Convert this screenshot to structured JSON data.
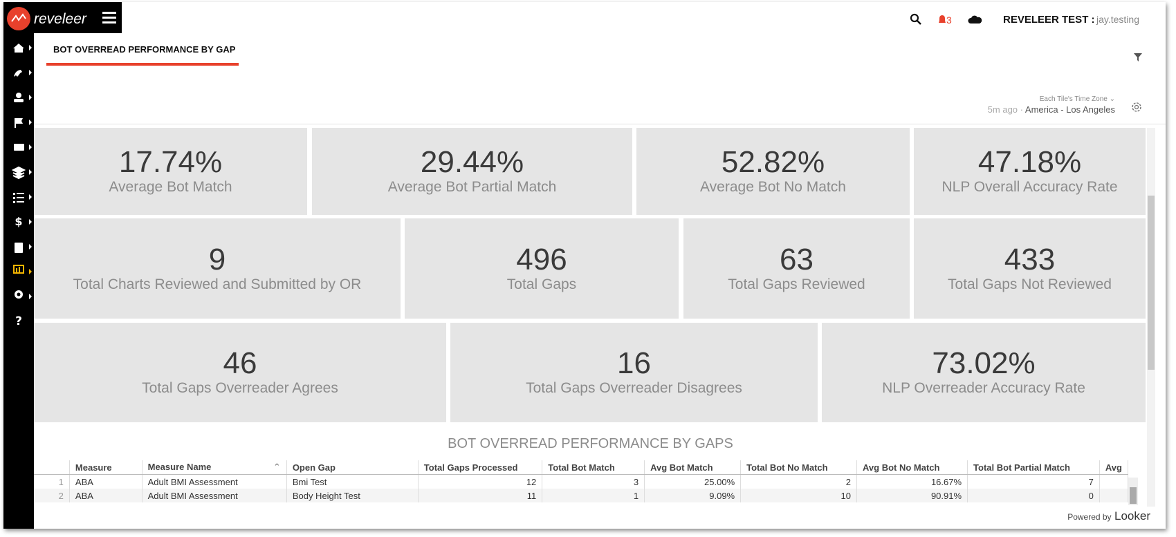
{
  "header": {
    "brand": "reveleer",
    "notifications": "3",
    "user_label": "REVELEER TEST :",
    "username": "jay.testing"
  },
  "nav": {
    "help": "?"
  },
  "tab": {
    "title": "BOT OVERREAD PERFORMANCE BY GAP"
  },
  "meta": {
    "timezone_label": "Each Tile's Time Zone",
    "updated": "5m ago",
    "separator": "·",
    "timezone": "America - Los Angeles"
  },
  "tiles": [
    [
      {
        "value": "17.74%",
        "label": "Average Bot Match"
      },
      {
        "value": "29.44%",
        "label": "Average Bot Partial Match"
      },
      {
        "value": "52.82%",
        "label": "Average Bot No Match"
      },
      {
        "value": "47.18%",
        "label": "NLP Overall Accuracy Rate"
      }
    ],
    [
      {
        "value": "9",
        "label": "Total Charts Reviewed and Submitted by OR"
      },
      {
        "value": "496",
        "label": "Total Gaps"
      },
      {
        "value": "63",
        "label": "Total Gaps Reviewed"
      },
      {
        "value": "433",
        "label": "Total Gaps Not Reviewed"
      }
    ],
    [
      {
        "value": "46",
        "label": "Total Gaps Overreader Agrees"
      },
      {
        "value": "16",
        "label": "Total Gaps Overreader Disagrees"
      },
      {
        "value": "73.02%",
        "label": "NLP Overreader Accuracy Rate"
      }
    ]
  ],
  "table": {
    "title": "BOT OVERREAD PERFORMANCE BY GAPS",
    "columns": [
      "Measure",
      "Measure Name",
      "Open Gap",
      "Total Gaps Processed",
      "Total Bot Match",
      "Avg Bot Match",
      "Total Bot No Match",
      "Avg Bot No Match",
      "Total Bot Partial Match",
      "Avg"
    ],
    "rows": [
      [
        "1",
        "ABA",
        "Adult BMI Assessment",
        "Bmi Test",
        "12",
        "3",
        "25.00%",
        "2",
        "16.67%",
        "7"
      ],
      [
        "2",
        "ABA",
        "Adult BMI Assessment",
        "Body Height Test",
        "11",
        "1",
        "9.09%",
        "10",
        "90.91%",
        "0"
      ]
    ]
  },
  "footer": {
    "powered": "Powered by",
    "brand": "Looker"
  }
}
